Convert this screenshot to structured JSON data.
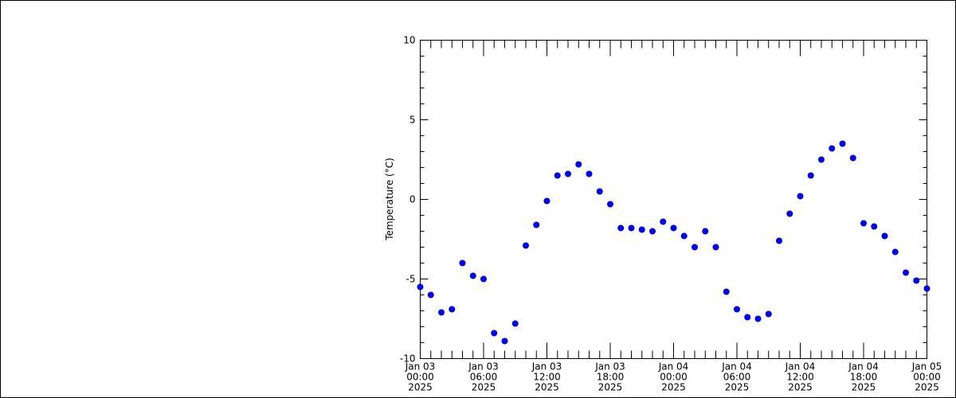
{
  "chart_data": {
    "type": "scatter",
    "y_label": "Temperature (°C)",
    "x": [
      "2025-01-03T00:00",
      "2025-01-03T01:00",
      "2025-01-03T02:00",
      "2025-01-03T03:00",
      "2025-01-03T04:00",
      "2025-01-03T05:00",
      "2025-01-03T06:00",
      "2025-01-03T07:00",
      "2025-01-03T08:00",
      "2025-01-03T09:00",
      "2025-01-03T10:00",
      "2025-01-03T11:00",
      "2025-01-03T12:00",
      "2025-01-03T13:00",
      "2025-01-03T14:00",
      "2025-01-03T15:00",
      "2025-01-03T16:00",
      "2025-01-03T17:00",
      "2025-01-03T18:00",
      "2025-01-03T19:00",
      "2025-01-03T20:00",
      "2025-01-03T21:00",
      "2025-01-03T22:00",
      "2025-01-03T23:00",
      "2025-01-04T00:00",
      "2025-01-04T01:00",
      "2025-01-04T02:00",
      "2025-01-04T03:00",
      "2025-01-04T04:00",
      "2025-01-04T05:00",
      "2025-01-04T06:00",
      "2025-01-04T07:00",
      "2025-01-04T08:00",
      "2025-01-04T09:00",
      "2025-01-04T10:00",
      "2025-01-04T11:00",
      "2025-01-04T12:00",
      "2025-01-04T13:00",
      "2025-01-04T14:00",
      "2025-01-04T15:00",
      "2025-01-04T16:00",
      "2025-01-04T17:00",
      "2025-01-04T18:00",
      "2025-01-04T19:00",
      "2025-01-04T20:00",
      "2025-01-04T21:00",
      "2025-01-04T22:00",
      "2025-01-04T23:00",
      "2025-01-05T00:00"
    ],
    "values": [
      -5.5,
      -6.0,
      -7.1,
      -6.9,
      -4.0,
      -4.8,
      -5.0,
      -8.4,
      -8.9,
      -7.8,
      -2.9,
      -1.6,
      -0.1,
      1.5,
      1.6,
      2.2,
      1.6,
      0.5,
      -0.3,
      -1.8,
      -1.8,
      -1.9,
      -2.0,
      -1.4,
      -1.8,
      -2.3,
      -3.0,
      -2.0,
      -3.0,
      -5.8,
      -6.9,
      -7.4,
      -7.5,
      -7.2,
      -2.6,
      -0.9,
      0.2,
      1.5,
      2.5,
      3.2,
      3.5,
      2.6,
      -1.5,
      -1.7,
      -2.3,
      -3.3,
      -4.6,
      -5.1,
      -5.6
    ],
    "color": "#0000ff",
    "xlim": [
      "2025-01-03T00:00",
      "2025-01-05T00:00"
    ],
    "xticks": [
      {
        "value": "2025-01-03T00:00",
        "label": [
          "Jan 03",
          "00:00",
          "2025"
        ]
      },
      {
        "value": "2025-01-03T06:00",
        "label": [
          "Jan 03",
          "06:00",
          "2025"
        ]
      },
      {
        "value": "2025-01-03T12:00",
        "label": [
          "Jan 03",
          "12:00",
          "2025"
        ]
      },
      {
        "value": "2025-01-03T18:00",
        "label": [
          "Jan 03",
          "18:00",
          "2025"
        ]
      },
      {
        "value": "2025-01-04T00:00",
        "label": [
          "Jan 04",
          "00:00",
          "2025"
        ]
      },
      {
        "value": "2025-01-04T06:00",
        "label": [
          "Jan 04",
          "06:00",
          "2025"
        ]
      },
      {
        "value": "2025-01-04T12:00",
        "label": [
          "Jan 04",
          "12:00",
          "2025"
        ]
      },
      {
        "value": "2025-01-04T18:00",
        "label": [
          "Jan 04",
          "18:00",
          "2025"
        ]
      },
      {
        "value": "2025-01-05T00:00",
        "label": [
          "Jan 05",
          "00:00",
          "2025"
        ]
      }
    ],
    "x_minor_hours": 1,
    "ylim": [
      -10,
      10
    ],
    "yticks": [
      -10,
      -5,
      0,
      5,
      10
    ],
    "y_minor": 1
  }
}
